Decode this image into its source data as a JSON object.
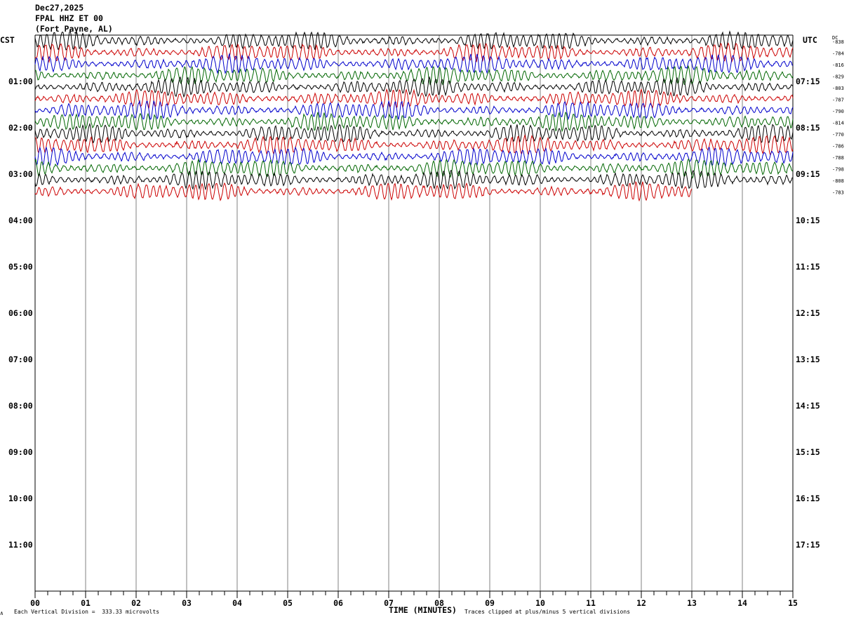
{
  "header": {
    "date": "Dec27,2025",
    "station": "FPAL HHZ ET 00",
    "location": "(Fort Payne, AL)"
  },
  "left_axis_title": "CST",
  "right_axis_title": "UTC",
  "dc_title": "DC",
  "footer": {
    "division_note": "Each Vertical Division =  333.33 microvolts",
    "clip_note": "Traces clipped at plus/minus 5 vertical divisions",
    "mark": "∧"
  },
  "colors": {
    "trace_cycle": [
      "#000000",
      "#cc0000",
      "#0000cc",
      "#006600"
    ],
    "grid": "#808080",
    "background": "#ffffff"
  },
  "chart_data": {
    "type": "line",
    "title": "FPAL HHZ ET 00",
    "xlabel": "TIME (MINUTES)",
    "x_ticks": [
      "00",
      "01",
      "02",
      "03",
      "04",
      "05",
      "06",
      "07",
      "08",
      "09",
      "10",
      "11",
      "12",
      "13",
      "14",
      "15"
    ],
    "xlim": [
      0,
      15
    ],
    "minor_tick_minutes": 0.25,
    "left_hour_labels": [
      "01:00",
      "02:00",
      "03:00",
      "04:00",
      "05:00",
      "06:00",
      "07:00",
      "08:00",
      "09:00",
      "10:00",
      "11:00"
    ],
    "right_hour_labels": [
      "07:15",
      "08:15",
      "09:15",
      "10:15",
      "11:15",
      "12:15",
      "13:15",
      "14:15",
      "15:15",
      "16:15",
      "17:15"
    ],
    "trace_interval_minutes": 15,
    "traces_per_hour": 4,
    "dc_offsets": [
      -838,
      -784,
      -816,
      -829,
      -803,
      -787,
      -790,
      -814,
      -770,
      -786,
      -788,
      -798,
      -808,
      -783
    ],
    "traces_recorded": 14,
    "last_trace_end_minute": 13,
    "clip_divisions": 5,
    "microvolts_per_division": 333.33,
    "grid": true
  }
}
